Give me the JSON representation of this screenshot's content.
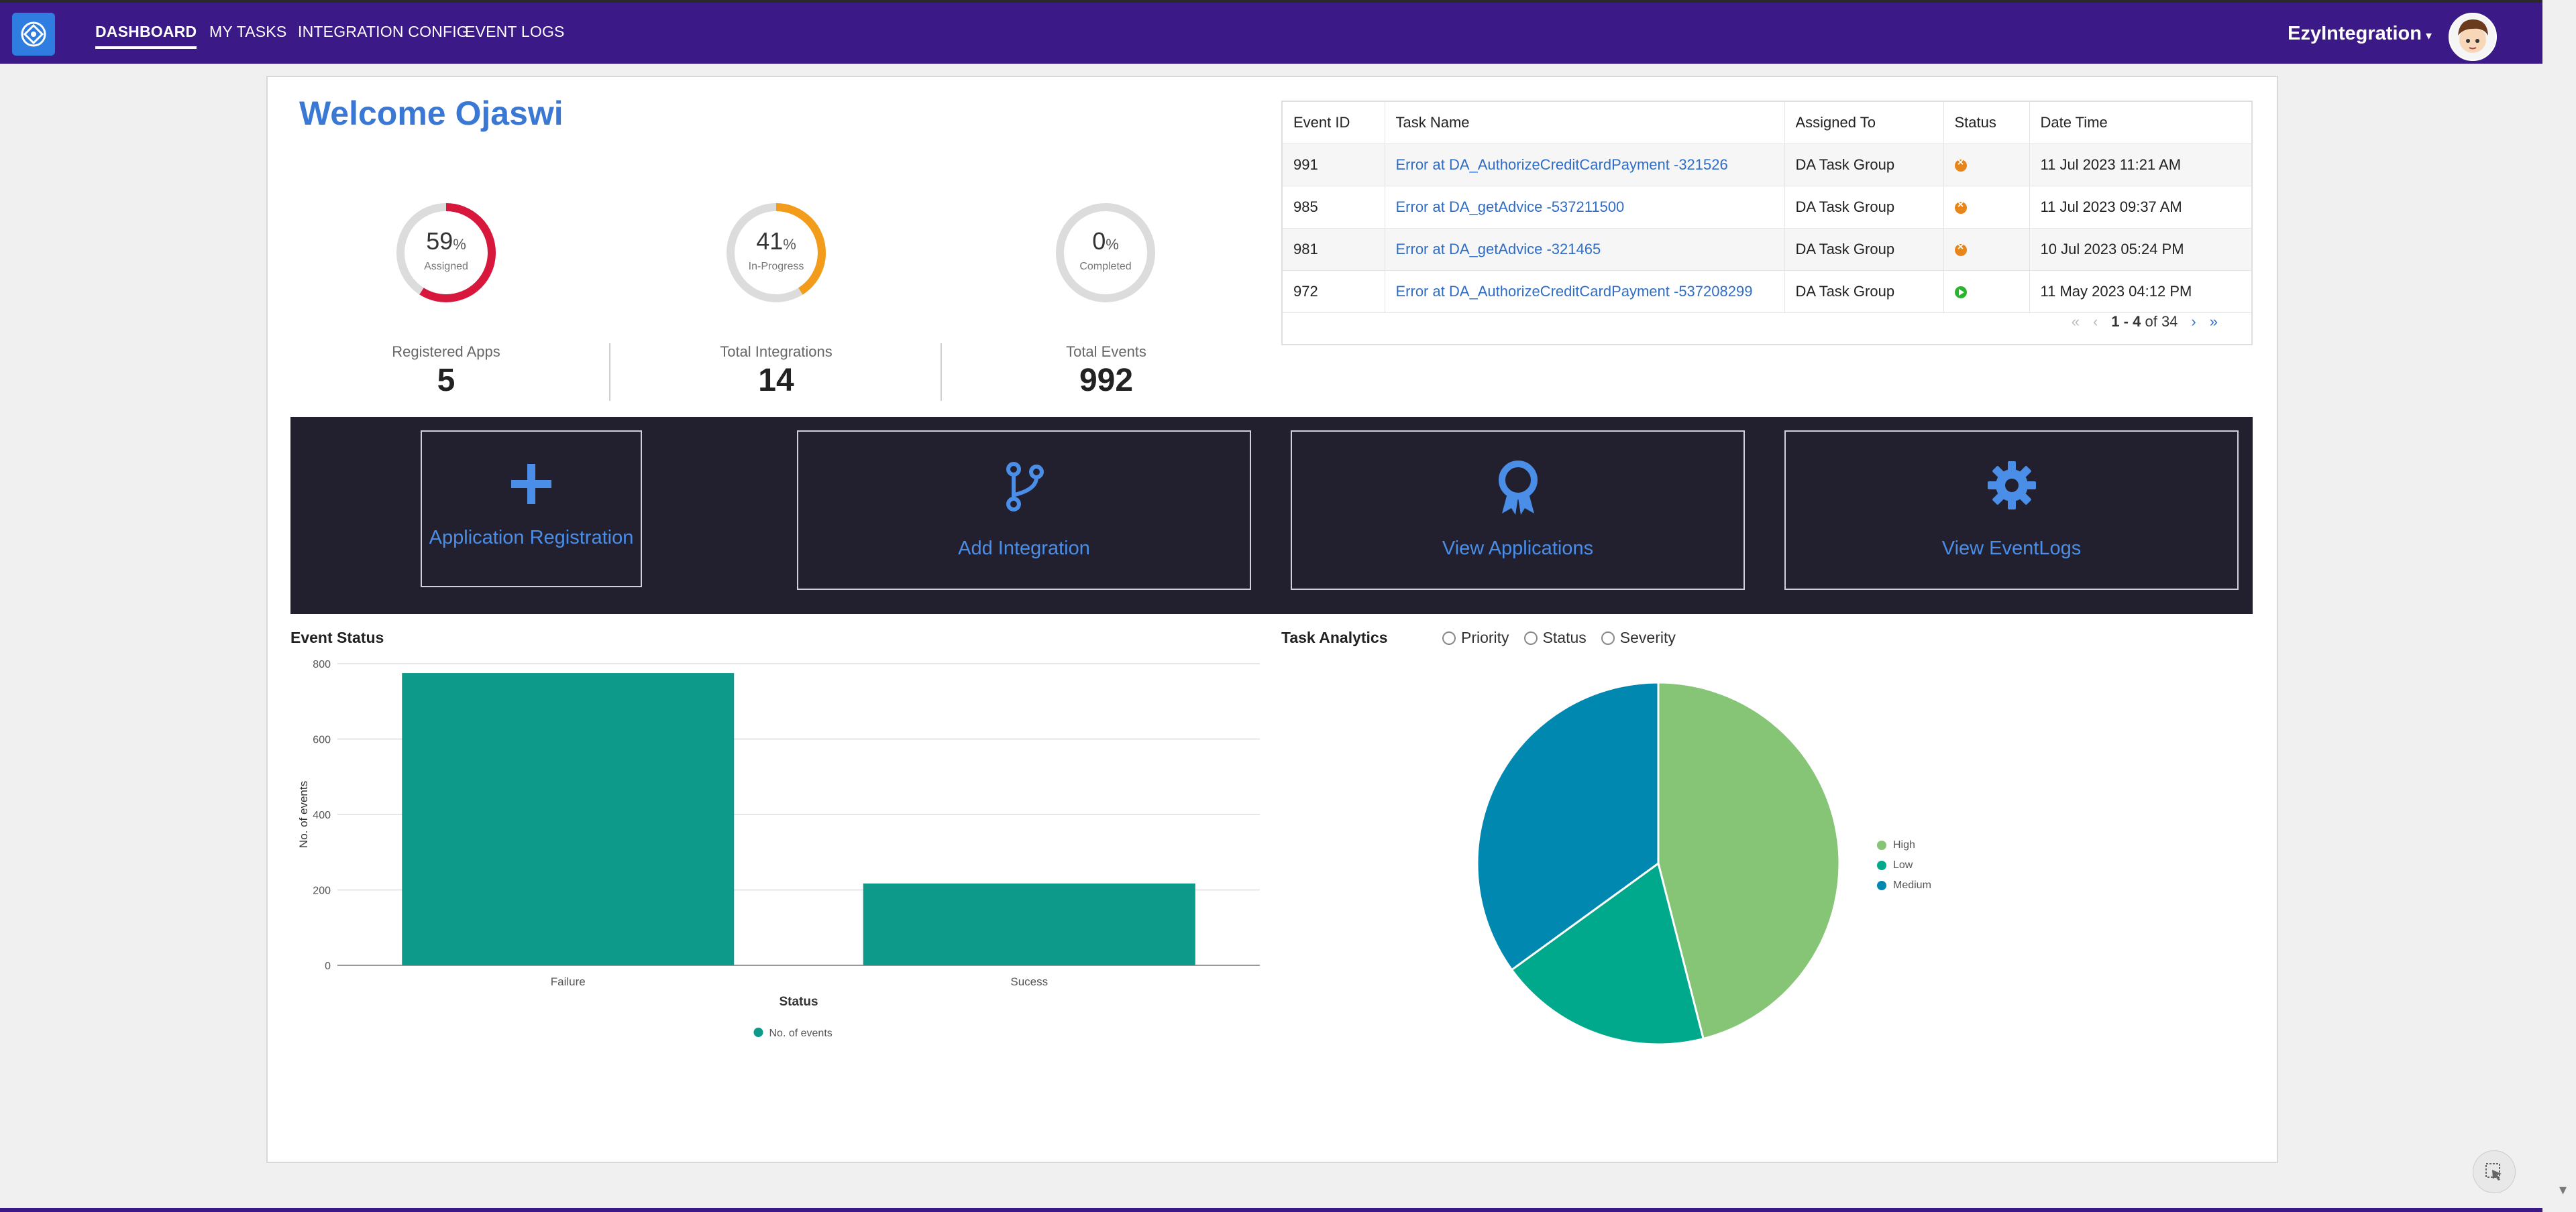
{
  "nav": {
    "items": [
      {
        "label": "DASHBOARD",
        "active": true
      },
      {
        "label": "MY TASKS",
        "active": false
      },
      {
        "label": "INTEGRATION CONFIG",
        "active": false
      },
      {
        "label": "EVENT LOGS",
        "active": false
      }
    ],
    "brand": "EzyIntegration",
    "colors": {
      "bar": "#3b1a87"
    }
  },
  "welcome": "Welcome Ojaswi",
  "gauges": [
    {
      "value": "59",
      "unit": "%",
      "label": "Assigned",
      "percent": 59,
      "color": "#d7183c"
    },
    {
      "value": "41",
      "unit": "%",
      "label": "In-Progress",
      "percent": 41,
      "color": "#f39b1a"
    },
    {
      "value": "0",
      "unit": "%",
      "label": "Completed",
      "percent": 0,
      "color": "#bbbbbb"
    }
  ],
  "stats": [
    {
      "label": "Registered Apps",
      "value": "5"
    },
    {
      "label": "Total Integrations",
      "value": "14"
    },
    {
      "label": "Total Events",
      "value": "992"
    }
  ],
  "events_table": {
    "headers": [
      "Event ID",
      "Task Name",
      "Assigned To",
      "Status",
      "Date Time"
    ],
    "rows": [
      {
        "id": "991",
        "task": "Error at DA_AuthorizeCreditCardPayment -321526",
        "assigned": "DA Task Group",
        "status": "error",
        "datetime": "11 Jul 2023 11:21 AM"
      },
      {
        "id": "985",
        "task": "Error at DA_getAdvice -537211500",
        "assigned": "DA Task Group",
        "status": "error",
        "datetime": "11 Jul 2023 09:37 AM"
      },
      {
        "id": "981",
        "task": "Error at DA_getAdvice -321465",
        "assigned": "DA Task Group",
        "status": "error",
        "datetime": "10 Jul 2023 05:24 PM"
      },
      {
        "id": "972",
        "task": "Error at DA_AuthorizeCreditCardPayment -537208299",
        "assigned": "DA Task Group",
        "status": "ok",
        "datetime": "11 May 2023 04:12 PM"
      }
    ],
    "pager": {
      "range": "1 - 4",
      "of": "of",
      "total": "34"
    }
  },
  "actions": [
    {
      "label": "Application Registration",
      "icon": "plus-icon"
    },
    {
      "label": "Add Integration",
      "icon": "branch-icon"
    },
    {
      "label": "View Applications",
      "icon": "award-icon"
    },
    {
      "label": "View EventLogs",
      "icon": "gear-icon"
    }
  ],
  "event_status": {
    "title": "Event Status",
    "legend": "No. of events"
  },
  "task_analytics": {
    "title": "Task Analytics",
    "options": [
      "Priority",
      "Status",
      "Severity"
    ]
  },
  "chart_data": [
    {
      "type": "bar",
      "title": "Event Status",
      "categories": [
        "Failure",
        "Sucess"
      ],
      "series": [
        {
          "name": "No. of events",
          "values": [
            775,
            217
          ]
        }
      ],
      "xlabel": "Status",
      "ylabel": "No. of events",
      "ylim": [
        0,
        800
      ],
      "yticks": [
        0,
        200,
        400,
        600,
        800
      ],
      "color": "#0e9a8b",
      "grid": true,
      "legend": "bottom"
    },
    {
      "type": "pie",
      "title": "Task Analytics",
      "categories": [
        "High",
        "Low",
        "Medium"
      ],
      "values": [
        46,
        19,
        35
      ],
      "colors": [
        "#85c575",
        "#00a98c",
        "#0088b0"
      ],
      "legend": "right"
    }
  ]
}
